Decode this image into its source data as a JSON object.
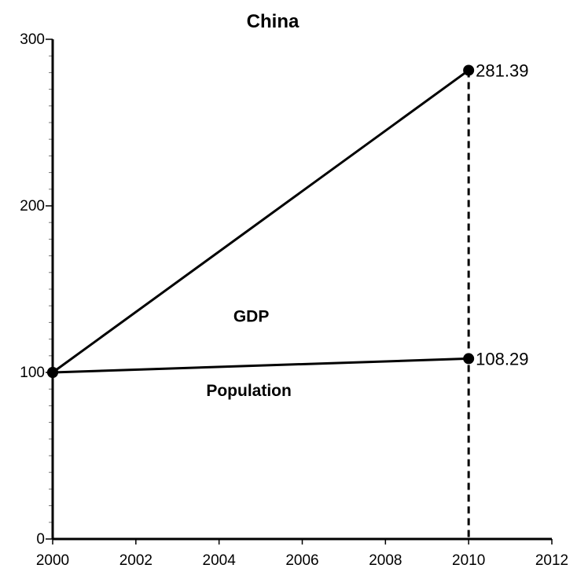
{
  "chart_data": {
    "type": "line",
    "title": "China",
    "xlabel": "",
    "ylabel": "",
    "xlim": [
      2000,
      2012
    ],
    "ylim": [
      0,
      300
    ],
    "x_ticks": [
      "2000",
      "2002",
      "2004",
      "2006",
      "2008",
      "2010",
      "2012"
    ],
    "y_ticks": [
      "0",
      "100",
      "200",
      "300"
    ],
    "grid": false,
    "series": [
      {
        "name": "GDP",
        "x": [
          2000,
          2010
        ],
        "y": [
          100,
          281.39
        ],
        "end_label": "281.39"
      },
      {
        "name": "Population",
        "x": [
          2000,
          2010
        ],
        "y": [
          100,
          108.29
        ],
        "end_label": "108.29"
      }
    ],
    "reference_line": {
      "style": "dashed",
      "x": 2010
    }
  }
}
